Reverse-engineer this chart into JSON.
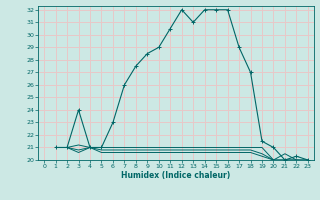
{
  "xlabel": "Humidex (Indice chaleur)",
  "bg_color": "#cce8e4",
  "grid_color": "#e8c8c8",
  "line_color": "#006666",
  "xlim": [
    -0.5,
    23.5
  ],
  "ylim": [
    20,
    32.3
  ],
  "yticks": [
    20,
    21,
    22,
    23,
    24,
    25,
    26,
    27,
    28,
    29,
    30,
    31,
    32
  ],
  "xticks": [
    0,
    1,
    2,
    3,
    4,
    5,
    6,
    7,
    8,
    9,
    10,
    11,
    12,
    13,
    14,
    15,
    16,
    17,
    18,
    19,
    20,
    21,
    22,
    23
  ],
  "curve1_x": [
    1,
    2,
    3,
    4,
    5,
    6,
    7,
    8,
    9,
    10,
    11,
    12,
    13,
    14,
    15,
    16,
    17,
    18,
    19,
    20,
    21,
    22,
    23
  ],
  "curve1_y": [
    21,
    21,
    24,
    21,
    21,
    23,
    26,
    27.5,
    28.5,
    29,
    30.5,
    32,
    31,
    32,
    32,
    32,
    29,
    27,
    21.5,
    21,
    20,
    20.3,
    20
  ],
  "curve2_x": [
    1,
    2,
    3,
    4,
    5,
    6,
    7,
    8,
    9,
    10,
    11,
    12,
    13,
    14,
    15,
    16,
    17,
    18,
    19,
    20,
    21,
    22,
    23
  ],
  "curve2_y": [
    21,
    21,
    21.2,
    21,
    21,
    21,
    21,
    21,
    21,
    21,
    21,
    21,
    21,
    21,
    21,
    21,
    21,
    21,
    21,
    20,
    20.5,
    20,
    20
  ],
  "curve3_x": [
    1,
    2,
    3,
    4,
    5,
    6,
    7,
    8,
    9,
    10,
    11,
    12,
    13,
    14,
    15,
    16,
    17,
    18,
    19,
    20,
    21,
    22,
    23
  ],
  "curve3_y": [
    21,
    21,
    20.8,
    21,
    20.8,
    20.8,
    20.8,
    20.8,
    20.8,
    20.8,
    20.8,
    20.8,
    20.8,
    20.8,
    20.8,
    20.8,
    20.8,
    20.8,
    20.5,
    20,
    20,
    20,
    20
  ],
  "curve4_x": [
    1,
    2,
    3,
    4,
    5,
    6,
    7,
    8,
    9,
    10,
    11,
    12,
    13,
    14,
    15,
    16,
    17,
    18,
    19,
    20,
    21,
    22,
    23
  ],
  "curve4_y": [
    21,
    21,
    20.6,
    21,
    20.6,
    20.6,
    20.6,
    20.6,
    20.6,
    20.6,
    20.6,
    20.6,
    20.6,
    20.6,
    20.6,
    20.6,
    20.6,
    20.6,
    20.3,
    20,
    20,
    20,
    19.9
  ]
}
